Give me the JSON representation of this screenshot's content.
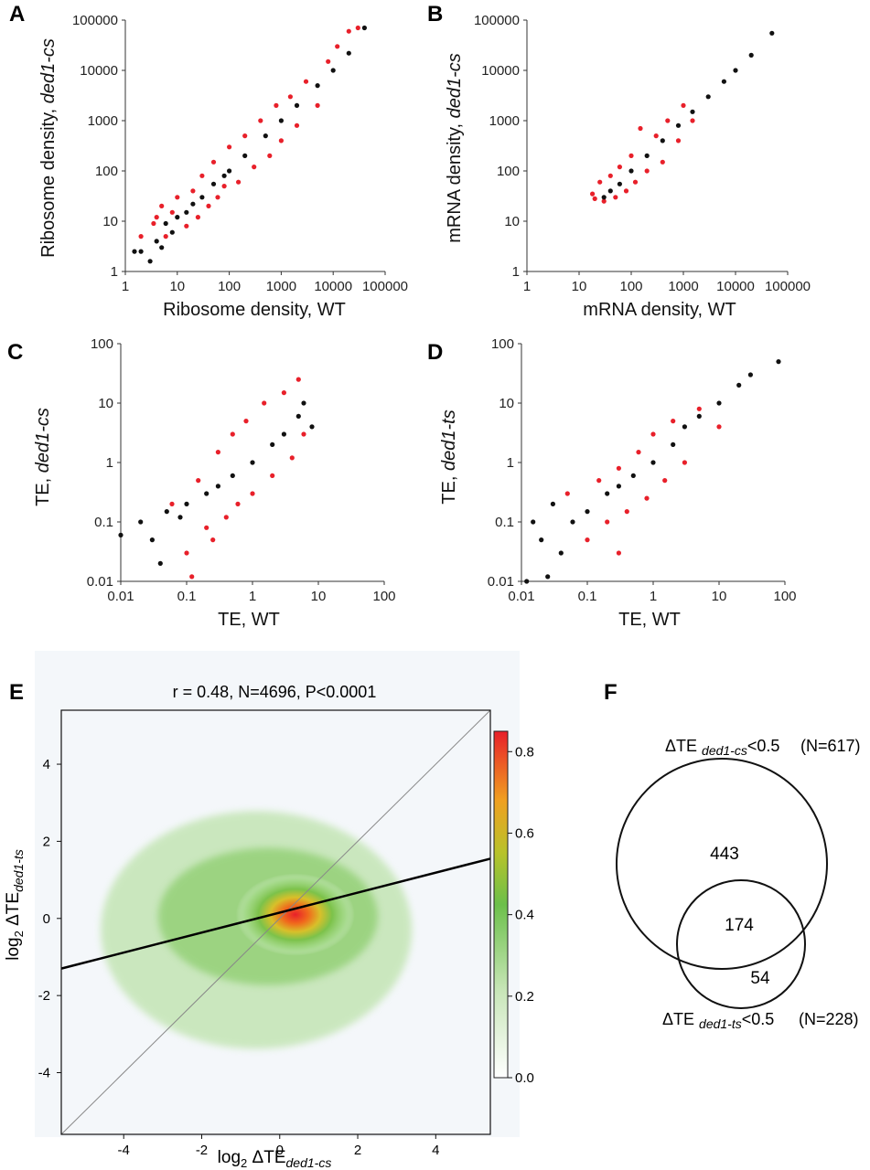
{
  "figure": {
    "panels": [
      "A",
      "B",
      "C",
      "D",
      "E",
      "F"
    ]
  },
  "colors": {
    "significant": "#e8202a",
    "other": "#111111",
    "heatmap_bg": "#f4f7fa"
  },
  "chart_data": [
    {
      "id": "A",
      "type": "scatter",
      "scale": "log-log",
      "xlabel": "Ribosome density, WT",
      "ylabel_main": "Ribosome density, ",
      "ylabel_italic": "ded1-cs",
      "xlim": [
        1,
        100000
      ],
      "ylim": [
        1,
        100000
      ],
      "xticks": [
        "1",
        "10",
        "100",
        "1000",
        "10000",
        "100000"
      ],
      "yticks": [
        "1",
        "10",
        "100",
        "1000",
        "10000",
        "100000"
      ],
      "series": [
        {
          "color": "red",
          "values": [
            [
              3.5,
              9
            ],
            [
              6,
              5
            ],
            [
              4,
              12
            ],
            [
              8,
              15
            ],
            [
              10,
              30
            ],
            [
              15,
              8
            ],
            [
              20,
              40
            ],
            [
              25,
              12
            ],
            [
              30,
              80
            ],
            [
              40,
              20
            ],
            [
              50,
              150
            ],
            [
              60,
              30
            ],
            [
              80,
              50
            ],
            [
              100,
              300
            ],
            [
              150,
              60
            ],
            [
              200,
              500
            ],
            [
              300,
              120
            ],
            [
              400,
              1000
            ],
            [
              600,
              200
            ],
            [
              800,
              2000
            ],
            [
              1000,
              400
            ],
            [
              1500,
              3000
            ],
            [
              2000,
              800
            ],
            [
              3000,
              6000
            ],
            [
              5000,
              2000
            ],
            [
              8000,
              15000
            ],
            [
              12000,
              30000
            ],
            [
              20000,
              60000
            ],
            [
              30000,
              70000
            ],
            [
              2,
              5
            ],
            [
              5,
              20
            ]
          ]
        },
        {
          "color": "black",
          "values": [
            [
              1.5,
              2.5
            ],
            [
              2,
              2.5
            ],
            [
              3,
              1.6
            ],
            [
              4,
              4
            ],
            [
              5,
              3
            ],
            [
              6,
              9
            ],
            [
              8,
              6
            ],
            [
              10,
              12
            ],
            [
              15,
              15
            ],
            [
              20,
              22
            ],
            [
              30,
              30
            ],
            [
              50,
              55
            ],
            [
              80,
              80
            ],
            [
              100,
              100
            ],
            [
              200,
              200
            ],
            [
              500,
              500
            ],
            [
              1000,
              1000
            ],
            [
              2000,
              2000
            ],
            [
              5000,
              5000
            ],
            [
              10000,
              10000
            ],
            [
              20000,
              22000
            ],
            [
              40000,
              70000
            ]
          ]
        }
      ]
    },
    {
      "id": "B",
      "type": "scatter",
      "scale": "log-log",
      "xlabel": "mRNA density, WT",
      "ylabel_main": "mRNA density, ",
      "ylabel_italic": "ded1-cs",
      "xlim": [
        1,
        100000
      ],
      "ylim": [
        1,
        100000
      ],
      "xticks": [
        "1",
        "10",
        "100",
        "1000",
        "10000",
        "100000"
      ],
      "yticks": [
        "1",
        "10",
        "100",
        "1000",
        "10000",
        "100000"
      ],
      "series": [
        {
          "color": "red",
          "values": [
            [
              18,
              35
            ],
            [
              20,
              28
            ],
            [
              25,
              60
            ],
            [
              30,
              25
            ],
            [
              40,
              80
            ],
            [
              50,
              30
            ],
            [
              60,
              120
            ],
            [
              80,
              40
            ],
            [
              100,
              200
            ],
            [
              120,
              60
            ],
            [
              150,
              700
            ],
            [
              200,
              100
            ],
            [
              300,
              500
            ],
            [
              400,
              150
            ],
            [
              500,
              1000
            ],
            [
              800,
              400
            ],
            [
              1000,
              2000
            ],
            [
              1500,
              1000
            ]
          ]
        },
        {
          "color": "black",
          "values": [
            [
              30,
              30
            ],
            [
              40,
              40
            ],
            [
              60,
              55
            ],
            [
              100,
              100
            ],
            [
              200,
              200
            ],
            [
              400,
              400
            ],
            [
              800,
              800
            ],
            [
              1500,
              1500
            ],
            [
              3000,
              3000
            ],
            [
              6000,
              6000
            ],
            [
              10000,
              10000
            ],
            [
              20000,
              20000
            ],
            [
              50000,
              55000
            ]
          ]
        }
      ]
    },
    {
      "id": "C",
      "type": "scatter",
      "scale": "log-log",
      "xlabel": "TE, WT",
      "ylabel_main": "TE, ",
      "ylabel_italic": "ded1-cs",
      "xlim": [
        0.01,
        100
      ],
      "ylim": [
        0.01,
        100
      ],
      "xticks": [
        "0.01",
        "0.1",
        "1",
        "10",
        "100"
      ],
      "yticks": [
        "0.01",
        "0.1",
        "1",
        "10",
        "100"
      ],
      "series": [
        {
          "color": "red",
          "values": [
            [
              0.06,
              0.2
            ],
            [
              0.1,
              0.03
            ],
            [
              0.15,
              0.5
            ],
            [
              0.2,
              0.08
            ],
            [
              0.3,
              1.5
            ],
            [
              0.4,
              0.12
            ],
            [
              0.5,
              3
            ],
            [
              0.6,
              0.2
            ],
            [
              0.8,
              5
            ],
            [
              1,
              0.3
            ],
            [
              1.5,
              10
            ],
            [
              2,
              0.6
            ],
            [
              3,
              15
            ],
            [
              4,
              1.2
            ],
            [
              5,
              25
            ],
            [
              6,
              3
            ],
            [
              0.12,
              0.012
            ],
            [
              0.25,
              0.05
            ]
          ]
        },
        {
          "color": "black",
          "values": [
            [
              0.01,
              0.06
            ],
            [
              0.02,
              0.1
            ],
            [
              0.03,
              0.05
            ],
            [
              0.04,
              0.02
            ],
            [
              0.05,
              0.15
            ],
            [
              0.08,
              0.12
            ],
            [
              0.1,
              0.2
            ],
            [
              0.2,
              0.3
            ],
            [
              0.3,
              0.4
            ],
            [
              0.5,
              0.6
            ],
            [
              1,
              1
            ],
            [
              2,
              2
            ],
            [
              3,
              3
            ],
            [
              5,
              6
            ],
            [
              6,
              10
            ],
            [
              8,
              4
            ]
          ]
        }
      ]
    },
    {
      "id": "D",
      "type": "scatter",
      "scale": "log-log",
      "xlabel": "TE, WT",
      "ylabel_main": "TE, ",
      "ylabel_italic": "ded1-ts",
      "xlim": [
        0.01,
        100
      ],
      "ylim": [
        0.01,
        100
      ],
      "xticks": [
        "0.01",
        "0.1",
        "1",
        "10",
        "100"
      ],
      "yticks": [
        "0.01",
        "0.1",
        "1",
        "10",
        "100"
      ],
      "series": [
        {
          "color": "red",
          "values": [
            [
              0.05,
              0.3
            ],
            [
              0.1,
              0.05
            ],
            [
              0.15,
              0.5
            ],
            [
              0.2,
              0.1
            ],
            [
              0.3,
              0.8
            ],
            [
              0.4,
              0.15
            ],
            [
              0.6,
              1.5
            ],
            [
              0.8,
              0.25
            ],
            [
              1,
              3
            ],
            [
              1.5,
              0.5
            ],
            [
              2,
              5
            ],
            [
              3,
              1
            ],
            [
              5,
              8
            ],
            [
              10,
              4
            ],
            [
              0.3,
              0.03
            ]
          ]
        },
        {
          "color": "black",
          "values": [
            [
              0.012,
              0.01
            ],
            [
              0.015,
              0.1
            ],
            [
              0.02,
              0.05
            ],
            [
              0.03,
              0.2
            ],
            [
              0.04,
              0.03
            ],
            [
              0.06,
              0.1
            ],
            [
              0.1,
              0.15
            ],
            [
              0.2,
              0.3
            ],
            [
              0.3,
              0.4
            ],
            [
              0.5,
              0.6
            ],
            [
              1,
              1
            ],
            [
              2,
              2
            ],
            [
              3,
              4
            ],
            [
              5,
              6
            ],
            [
              10,
              10
            ],
            [
              20,
              20
            ],
            [
              30,
              30
            ],
            [
              80,
              50
            ],
            [
              0.025,
              0.012
            ]
          ]
        }
      ]
    },
    {
      "id": "E",
      "type": "heatmap",
      "title": "r = 0.48, N=4696, P<0.0001",
      "xlabel_prefix": "log",
      "xlabel_sub2": "2",
      "xlabel_mid": "ΔTE",
      "xlabel_sub": "ded1-cs",
      "ylabel_prefix": "log",
      "ylabel_sub2": "2",
      "ylabel_mid": "ΔTE",
      "ylabel_sub": "ded1-ts",
      "xlim": [
        -5.6,
        5.4
      ],
      "ylim": [
        -5.6,
        5.4
      ],
      "xticks": [
        "-4",
        "-2",
        "0",
        "2",
        "4"
      ],
      "yticks": [
        "-4",
        "-2",
        "0",
        "2",
        "4"
      ],
      "density_center": [
        0.4,
        0.1
      ],
      "regression_line": {
        "x": [
          -5.6,
          5.4
        ],
        "y": [
          -1.3,
          1.55
        ]
      },
      "identity_line": true,
      "colorbar": {
        "min": 0.0,
        "max": 0.85,
        "ticks": [
          "0.0",
          "0.2",
          "0.4",
          "0.6",
          "0.8"
        ]
      }
    },
    {
      "id": "F",
      "type": "venn",
      "set_a": {
        "label_main": "ΔTE ",
        "label_sub": "ded1-cs",
        "label_end": "<0.5",
        "n_text": "(N=617)"
      },
      "set_b": {
        "label_main": "ΔTE ",
        "label_sub": "ded1-ts",
        "label_end": "<0.5",
        "n_text": "(N=228)"
      },
      "only_a": "443",
      "both": "174",
      "only_b": "54"
    }
  ]
}
